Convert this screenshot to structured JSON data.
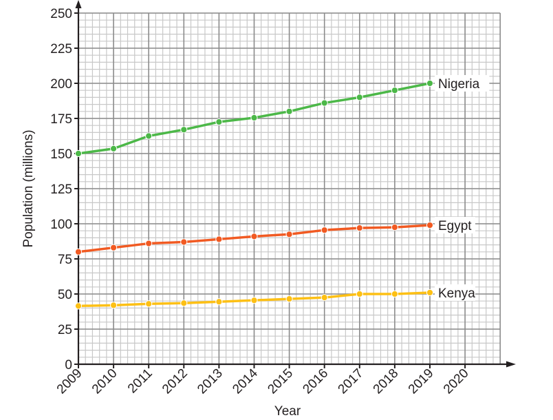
{
  "chart_data": {
    "type": "line",
    "title": "",
    "xlabel": "Year",
    "ylabel": "Population (millions)",
    "x": [
      2009,
      2010,
      2011,
      2012,
      2013,
      2014,
      2015,
      2016,
      2017,
      2018,
      2019
    ],
    "x_ticks": [
      "2009",
      "2010",
      "2011",
      "2012",
      "2013",
      "2014",
      "2015",
      "2016",
      "2017",
      "2018",
      "2019",
      "2020"
    ],
    "y_ticks": [
      "0",
      "25",
      "50",
      "75",
      "100",
      "125",
      "150",
      "175",
      "200",
      "225",
      "250"
    ],
    "ylim": [
      0,
      250
    ],
    "xlim": [
      2009,
      2021
    ],
    "grid": true,
    "legend_position": "inline labels at line ends",
    "series": [
      {
        "name": "Nigeria",
        "color": "#4cb848",
        "values": [
          150,
          153.5,
          162.5,
          167,
          172.5,
          175.5,
          180,
          186,
          190,
          195,
          200
        ]
      },
      {
        "name": "Egypt",
        "color": "#f15a22",
        "values": [
          80,
          83,
          86,
          87,
          89,
          91,
          92.5,
          95.5,
          97,
          97.5,
          99
        ]
      },
      {
        "name": "Kenya",
        "color": "#fdc015",
        "values": [
          41.5,
          42,
          43,
          43.5,
          44.5,
          45.5,
          46.5,
          47.5,
          50,
          50,
          51
        ]
      }
    ]
  },
  "colors": {
    "axis": "#231f20",
    "grid_major": "#8c8c8c",
    "grid_minor": "#c8c8c8",
    "text": "#231f20"
  }
}
